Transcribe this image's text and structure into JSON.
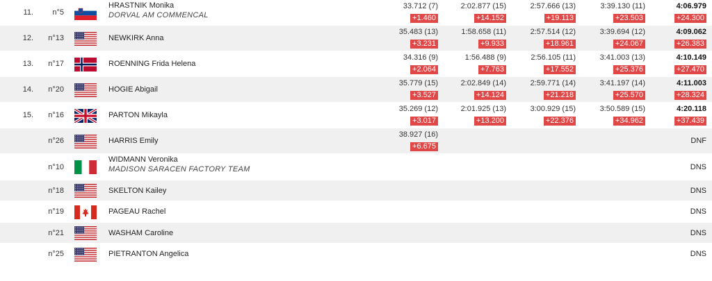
{
  "rows": [
    {
      "rank": "11.",
      "bib": "n°5",
      "flag": "slovenia",
      "name": "HRASTNIK Monika",
      "team": "DORVAL AM COMMENCAL",
      "splits": [
        {
          "time": "33.712 (7)",
          "gap": "+1.460"
        },
        {
          "time": "2:02.877 (15)",
          "gap": "+14.152"
        },
        {
          "time": "2:57.666 (13)",
          "gap": "+19.113"
        },
        {
          "time": "3:39.130 (11)",
          "gap": "+23.503"
        }
      ],
      "final": {
        "time": "4:06.979",
        "gap": "+24.300"
      }
    },
    {
      "rank": "12.",
      "bib": "n°13",
      "flag": "usa",
      "name": "NEWKIRK Anna",
      "team": "",
      "splits": [
        {
          "time": "35.483 (13)",
          "gap": "+3.231"
        },
        {
          "time": "1:58.658 (11)",
          "gap": "+9.933"
        },
        {
          "time": "2:57.514 (12)",
          "gap": "+18.961"
        },
        {
          "time": "3:39.694 (12)",
          "gap": "+24.067"
        }
      ],
      "final": {
        "time": "4:09.062",
        "gap": "+26.383"
      }
    },
    {
      "rank": "13.",
      "bib": "n°17",
      "flag": "norway",
      "name": "ROENNING Frida Helena",
      "team": "",
      "splits": [
        {
          "time": "34.316 (9)",
          "gap": "+2.064"
        },
        {
          "time": "1:56.488 (9)",
          "gap": "+7.763"
        },
        {
          "time": "2:56.105 (11)",
          "gap": "+17.552"
        },
        {
          "time": "3:41.003 (13)",
          "gap": "+25.376"
        }
      ],
      "final": {
        "time": "4:10.149",
        "gap": "+27.470"
      }
    },
    {
      "rank": "14.",
      "bib": "n°20",
      "flag": "usa",
      "name": "HOGIE Abigail",
      "team": "",
      "splits": [
        {
          "time": "35.779 (15)",
          "gap": "+3.527"
        },
        {
          "time": "2:02.849 (14)",
          "gap": "+14.124"
        },
        {
          "time": "2:59.771 (14)",
          "gap": "+21.218"
        },
        {
          "time": "3:41.197 (14)",
          "gap": "+25.570"
        }
      ],
      "final": {
        "time": "4:11.003",
        "gap": "+28.324"
      }
    },
    {
      "rank": "15.",
      "bib": "n°16",
      "flag": "uk",
      "name": "PARTON Mikayla",
      "team": "",
      "splits": [
        {
          "time": "35.269 (12)",
          "gap": "+3.017"
        },
        {
          "time": "2:01.925 (13)",
          "gap": "+13.200"
        },
        {
          "time": "3:00.929 (15)",
          "gap": "+22.376"
        },
        {
          "time": "3:50.589 (15)",
          "gap": "+34.962"
        }
      ],
      "final": {
        "time": "4:20.118",
        "gap": "+37.439"
      }
    },
    {
      "rank": "",
      "bib": "n°26",
      "flag": "usa",
      "name": "HARRIS Emily",
      "team": "",
      "splits": [
        {
          "time": "38.927 (16)",
          "gap": "+6.675"
        }
      ],
      "status": "DNF"
    },
    {
      "rank": "",
      "bib": "n°10",
      "flag": "italy",
      "name": "WIDMANN Veronika",
      "team": "MADISON SARACEN FACTORY TEAM",
      "splits": [],
      "status": "DNS"
    },
    {
      "rank": "",
      "bib": "n°18",
      "flag": "usa",
      "name": "SKELTON Kailey",
      "team": "",
      "splits": [],
      "status": "DNS"
    },
    {
      "rank": "",
      "bib": "n°19",
      "flag": "canada",
      "name": "PAGEAU Rachel",
      "team": "",
      "splits": [],
      "status": "DNS"
    },
    {
      "rank": "",
      "bib": "n°21",
      "flag": "usa",
      "name": "WASHAM Caroline",
      "team": "",
      "splits": [],
      "status": "DNS"
    },
    {
      "rank": "",
      "bib": "n°25",
      "flag": "usa",
      "name": "PIETRANTON Angelica",
      "team": "",
      "splits": [],
      "status": "DNS"
    }
  ],
  "colors": {
    "gap_bg": "#e04848",
    "alt_row": "#f0f0f0"
  }
}
